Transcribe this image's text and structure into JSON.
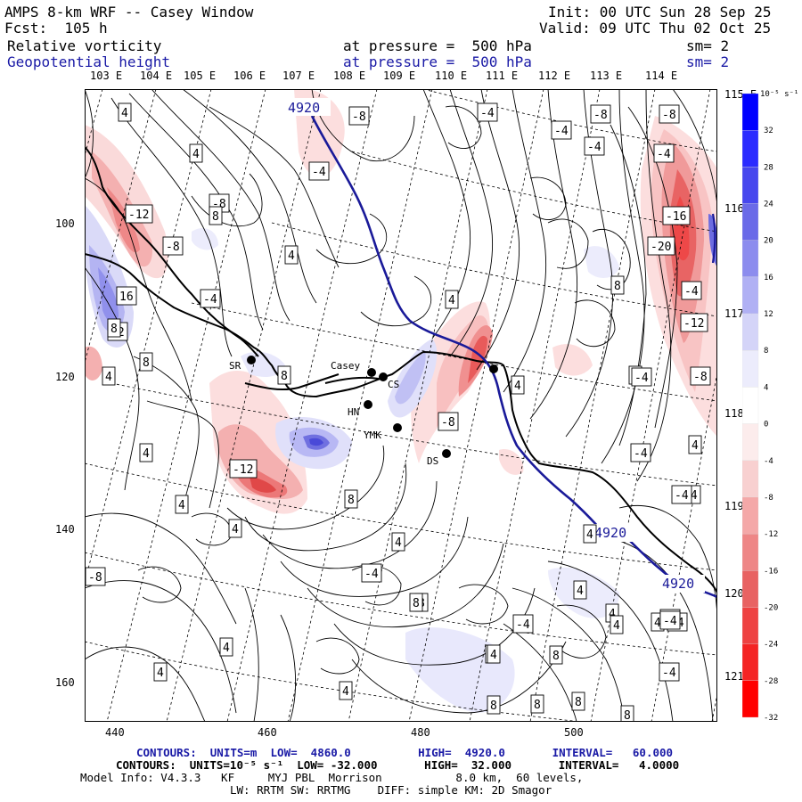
{
  "header": {
    "title": "AMPS 8-km WRF -- Casey Window",
    "fcst": "Fcst:  105 h",
    "init": "Init: 00 UTC Sun 28 Sep 25",
    "valid": "Valid: 09 UTC Thu 02 Oct 25",
    "field1_name": "Relative vorticity",
    "field1_level": "at pressure =  500 hPa",
    "field1_sm": "sm= 2",
    "field2_name": "Geopotential height",
    "field2_level": "at pressure =  500 hPa",
    "field2_sm": "sm= 2"
  },
  "lon_labels": [
    "103 E",
    "104 E",
    "105 E",
    "106 E",
    "107 E",
    "108 E",
    "109 E",
    "110 E",
    "111 E",
    "112 E",
    "113 E",
    "114 E"
  ],
  "lat_labels": [
    "115 E",
    "116 E",
    "117 E",
    "118 E",
    "119 E",
    "120 E",
    "121 E"
  ],
  "y_ticks": [
    "100",
    "120",
    "140",
    "160"
  ],
  "x_ticks": [
    "440",
    "460",
    "480",
    "500"
  ],
  "colorbar": {
    "unit": "10⁻⁵ s⁻¹",
    "labels": [
      "32",
      "28",
      "24",
      "20",
      "16",
      "12",
      "8",
      "4",
      "0",
      "-4",
      "-8",
      "-12",
      "-16",
      "-20",
      "-24",
      "-28",
      "-32"
    ],
    "colors": [
      "#0000ff",
      "#2b2bff",
      "#4747ee",
      "#6a6ae8",
      "#8c8cee",
      "#b0b0f4",
      "#d4d4f8",
      "#ececfc",
      "#ffffff",
      "#fcecec",
      "#f8d0d0",
      "#f4a8a8",
      "#ee8686",
      "#e86262",
      "#ee4242",
      "#f42424",
      "#ff0000"
    ]
  },
  "stations": [
    {
      "code": "SR"
    },
    {
      "code": "Casey"
    },
    {
      "code": "CS"
    },
    {
      "code": "HN"
    },
    {
      "code": "YMK"
    },
    {
      "code": "DS"
    }
  ],
  "height_labels": [
    "4920",
    "4920",
    "4920"
  ],
  "contour_labels": [
    "4",
    "-8",
    "-4",
    "-8",
    "-8",
    "4",
    "-4",
    "-4",
    "-8",
    "-4",
    "-4",
    "-12",
    "8",
    "-8",
    "4",
    "-16",
    "-4",
    "-20",
    "16",
    "8",
    "-4",
    "12",
    "4",
    "8",
    "-12",
    "-8",
    "4",
    "4",
    "8",
    "8",
    "-8",
    "-4",
    "4",
    "4",
    "-4",
    "-4",
    "4",
    "-12",
    "8",
    "4",
    "4",
    "4",
    "-4",
    "-8",
    "-4",
    "4",
    "-4",
    "4",
    "-4",
    "4",
    "4",
    "8",
    "4",
    "8",
    "8",
    "8",
    "4",
    "4",
    "4",
    "8",
    "8",
    "8",
    "-4",
    "8",
    "4",
    "-4",
    "-4"
  ],
  "footer": {
    "line1": "CONTOURS:  UNITS=m  LOW=  4860.0          HIGH=  4920.0       INTERVAL=   60.000",
    "line2": "CONTOURS:  UNITS=10⁻⁵ s⁻¹  LOW= -32.000       HIGH=  32.000       INTERVAL=   4.0000",
    "line3": "Model Info: V4.3.3   KF     MYJ PBL  Morrison           8.0 km,  60 levels,",
    "line4": "LW: RRTM SW: RRTMG    DIFF: simple KM: 2D Smagor"
  }
}
